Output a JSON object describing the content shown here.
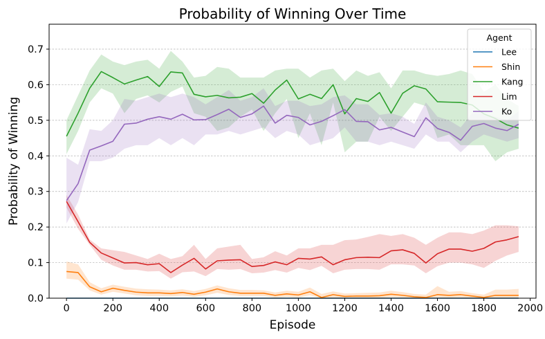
{
  "chart_data": {
    "type": "line",
    "title": "Probability of Winning Over Time",
    "xlabel": "Episode",
    "ylabel": "Probability of Winning",
    "xlim": [
      -75,
      2025
    ],
    "ylim": [
      0,
      0.77
    ],
    "xticks": [
      0,
      200,
      400,
      600,
      800,
      1000,
      1200,
      1400,
      1600,
      1800,
      2000
    ],
    "yticks": [
      0.0,
      0.1,
      0.2,
      0.3,
      0.4,
      0.5,
      0.6,
      0.7
    ],
    "grid": "horizontal dashed",
    "legend": {
      "title": "Agent",
      "placement": "top-right"
    },
    "x": [
      0,
      50,
      100,
      150,
      200,
      250,
      300,
      350,
      400,
      450,
      500,
      550,
      600,
      650,
      700,
      750,
      800,
      850,
      900,
      950,
      1000,
      1050,
      1100,
      1150,
      1200,
      1250,
      1300,
      1350,
      1400,
      1450,
      1500,
      1550,
      1600,
      1650,
      1700,
      1750,
      1800,
      1850,
      1900,
      1950
    ],
    "series": [
      {
        "name": "Lee",
        "color": "#1f77b4",
        "values": [
          0,
          0,
          0,
          0,
          0,
          0,
          0,
          0,
          0,
          0,
          0,
          0,
          0,
          0,
          0,
          0,
          0,
          0,
          0,
          0,
          0,
          0,
          0,
          0,
          0,
          0,
          0,
          0,
          0,
          0,
          0,
          0,
          0,
          0,
          0,
          0,
          0,
          0,
          0,
          0
        ]
      },
      {
        "name": "Shin",
        "color": "#ff7f0e",
        "values": [
          0.075,
          0.072,
          0.032,
          0.018,
          0.028,
          0.022,
          0.017,
          0.015,
          0.015,
          0.013,
          0.016,
          0.011,
          0.017,
          0.026,
          0.018,
          0.014,
          0.014,
          0.014,
          0.008,
          0.012,
          0.009,
          0.018,
          0.002,
          0.01,
          0.005,
          0.006,
          0.006,
          0.007,
          0.011,
          0.008,
          0.004,
          0.002,
          0.01,
          0.008,
          0.01,
          0.006,
          0.002,
          0.008,
          0.008,
          0.008
        ],
        "lower": [
          0.055,
          0.052,
          0.022,
          0.01,
          0.018,
          0.013,
          0.008,
          0.006,
          0.006,
          0.005,
          0.007,
          0.004,
          0.008,
          0.015,
          0.009,
          0.006,
          0.006,
          0.006,
          0.002,
          0.004,
          0.002,
          0.008,
          0.0,
          0.002,
          0.0,
          0.0,
          0.0,
          0.0,
          0.003,
          0.002,
          0.0,
          0.0,
          0.002,
          0.001,
          0.002,
          0.0,
          0.0,
          0.001,
          0.001,
          0.001
        ],
        "upper": [
          0.103,
          0.095,
          0.045,
          0.028,
          0.038,
          0.032,
          0.027,
          0.025,
          0.024,
          0.022,
          0.025,
          0.02,
          0.026,
          0.036,
          0.028,
          0.023,
          0.023,
          0.022,
          0.016,
          0.021,
          0.018,
          0.03,
          0.012,
          0.019,
          0.013,
          0.014,
          0.015,
          0.016,
          0.021,
          0.017,
          0.012,
          0.01,
          0.034,
          0.018,
          0.02,
          0.014,
          0.01,
          0.024,
          0.024,
          0.026
        ]
      },
      {
        "name": "Kang",
        "color": "#2ca02c",
        "values": [
          0.455,
          0.52,
          0.59,
          0.637,
          0.62,
          0.602,
          0.613,
          0.623,
          0.595,
          0.636,
          0.633,
          0.573,
          0.566,
          0.57,
          0.563,
          0.565,
          0.575,
          0.548,
          0.585,
          0.613,
          0.56,
          0.573,
          0.561,
          0.6,
          0.518,
          0.561,
          0.553,
          0.578,
          0.52,
          0.576,
          0.597,
          0.588,
          0.552,
          0.551,
          0.55,
          0.543,
          0.518,
          0.505,
          0.487,
          0.478
        ],
        "lower": [
          0.405,
          0.47,
          0.55,
          0.59,
          0.575,
          0.52,
          0.56,
          0.57,
          0.55,
          0.58,
          0.595,
          0.52,
          0.51,
          0.47,
          0.48,
          0.51,
          0.53,
          0.47,
          0.52,
          0.56,
          0.45,
          0.52,
          0.43,
          0.55,
          0.41,
          0.44,
          0.44,
          0.51,
          0.47,
          0.51,
          0.55,
          0.54,
          0.45,
          0.46,
          0.43,
          0.43,
          0.43,
          0.385,
          0.41,
          0.42
        ],
        "upper": [
          0.5,
          0.57,
          0.64,
          0.685,
          0.665,
          0.655,
          0.665,
          0.67,
          0.645,
          0.695,
          0.665,
          0.62,
          0.625,
          0.65,
          0.645,
          0.62,
          0.62,
          0.62,
          0.64,
          0.645,
          0.645,
          0.62,
          0.64,
          0.645,
          0.61,
          0.64,
          0.625,
          0.635,
          0.59,
          0.64,
          0.64,
          0.63,
          0.625,
          0.63,
          0.64,
          0.63,
          0.58,
          0.6,
          0.56,
          0.54
        ]
      },
      {
        "name": "Lim",
        "color": "#d62728",
        "values": [
          0.272,
          0.215,
          0.157,
          0.127,
          0.113,
          0.099,
          0.1,
          0.094,
          0.097,
          0.072,
          0.093,
          0.112,
          0.082,
          0.105,
          0.107,
          0.108,
          0.089,
          0.092,
          0.102,
          0.094,
          0.112,
          0.11,
          0.116,
          0.094,
          0.108,
          0.114,
          0.115,
          0.114,
          0.133,
          0.136,
          0.126,
          0.099,
          0.125,
          0.138,
          0.138,
          0.132,
          0.14,
          0.158,
          0.164,
          0.173
        ],
        "lower": [
          0.255,
          0.195,
          0.15,
          0.108,
          0.092,
          0.08,
          0.08,
          0.075,
          0.076,
          0.055,
          0.073,
          0.075,
          0.062,
          0.082,
          0.08,
          0.082,
          0.07,
          0.072,
          0.079,
          0.072,
          0.085,
          0.079,
          0.091,
          0.07,
          0.08,
          0.082,
          0.082,
          0.08,
          0.095,
          0.095,
          0.092,
          0.07,
          0.09,
          0.1,
          0.1,
          0.095,
          0.085,
          0.105,
          0.12,
          0.13
        ],
        "upper": [
          0.29,
          0.235,
          0.165,
          0.14,
          0.135,
          0.13,
          0.12,
          0.11,
          0.125,
          0.11,
          0.118,
          0.15,
          0.11,
          0.14,
          0.145,
          0.15,
          0.11,
          0.115,
          0.132,
          0.12,
          0.14,
          0.14,
          0.15,
          0.15,
          0.163,
          0.165,
          0.172,
          0.18,
          0.175,
          0.18,
          0.17,
          0.15,
          0.17,
          0.185,
          0.185,
          0.18,
          0.19,
          0.205,
          0.205,
          0.202
        ]
      },
      {
        "name": "Ko",
        "color": "#9467bd",
        "values": [
          0.274,
          0.322,
          0.416,
          0.428,
          0.441,
          0.489,
          0.492,
          0.503,
          0.51,
          0.503,
          0.517,
          0.501,
          0.502,
          0.516,
          0.531,
          0.508,
          0.518,
          0.54,
          0.492,
          0.514,
          0.508,
          0.487,
          0.497,
          0.513,
          0.53,
          0.497,
          0.496,
          0.473,
          0.48,
          0.467,
          0.454,
          0.507,
          0.477,
          0.466,
          0.444,
          0.483,
          0.491,
          0.478,
          0.471,
          0.489
        ],
        "lower": [
          0.21,
          0.27,
          0.385,
          0.385,
          0.395,
          0.42,
          0.43,
          0.43,
          0.45,
          0.43,
          0.45,
          0.43,
          0.46,
          0.46,
          0.47,
          0.46,
          0.47,
          0.48,
          0.45,
          0.47,
          0.46,
          0.43,
          0.44,
          0.45,
          0.48,
          0.44,
          0.44,
          0.43,
          0.44,
          0.43,
          0.42,
          0.46,
          0.44,
          0.44,
          0.41,
          0.44,
          0.46,
          0.45,
          0.44,
          0.45
        ],
        "upper": [
          0.395,
          0.375,
          0.475,
          0.47,
          0.5,
          0.56,
          0.555,
          0.565,
          0.575,
          0.565,
          0.575,
          0.565,
          0.545,
          0.565,
          0.585,
          0.555,
          0.565,
          0.59,
          0.54,
          0.555,
          0.555,
          0.54,
          0.545,
          0.565,
          0.57,
          0.545,
          0.545,
          0.515,
          0.52,
          0.51,
          0.49,
          0.55,
          0.51,
          0.5,
          0.48,
          0.52,
          0.52,
          0.51,
          0.5,
          0.525
        ]
      }
    ]
  }
}
